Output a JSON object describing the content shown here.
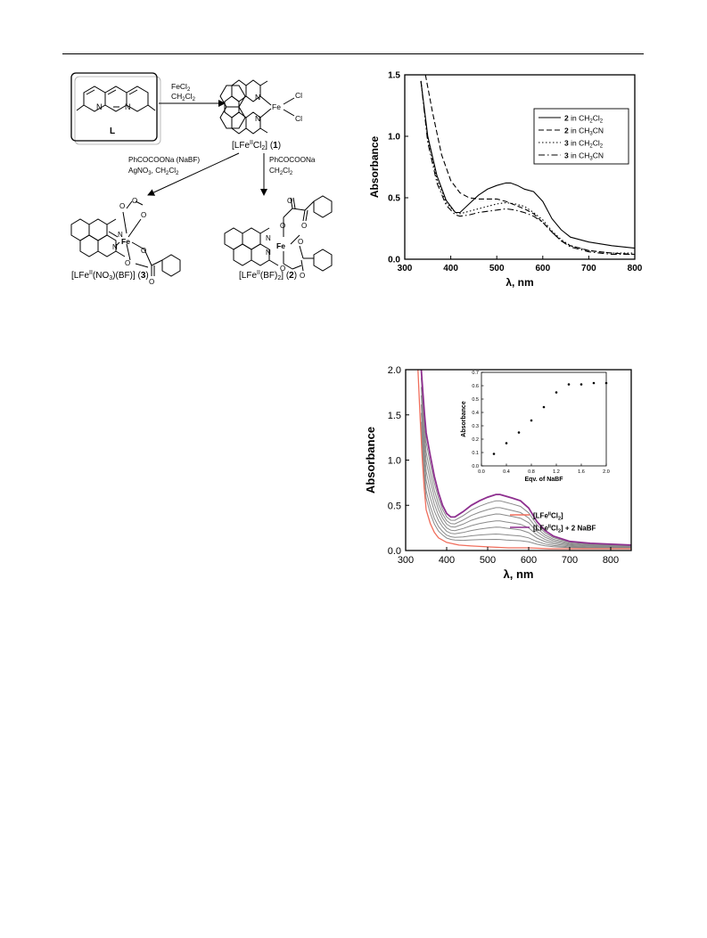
{
  "scheme": {
    "ligand_label": "L",
    "arrow1_line1": "FeCl",
    "arrow1_line1_sub": "2",
    "arrow1_line2": "CH",
    "arrow1_line2_parts": [
      "CH",
      "2",
      "Cl",
      "2"
    ],
    "fe_label": "Fe",
    "n_label": "N",
    "cl_label": "Cl",
    "compound1_parts": [
      "[LFe",
      "II",
      "Cl",
      "2",
      "] (",
      "1",
      ")"
    ],
    "left_reagent_line1": "PhCOCOONa (NaBF)",
    "left_reagent_line2_parts": [
      "AgNO",
      "3",
      ", CH",
      "2",
      "Cl",
      "2"
    ],
    "right_reagent_line1": "PhCOCOONa",
    "right_reagent_line2_parts": [
      "CH",
      "2",
      "Cl",
      "2"
    ],
    "compound3_parts": [
      "[LFe",
      "II",
      "(NO",
      "3",
      ")(BF)] (",
      "3",
      ")"
    ],
    "compound2_parts": [
      "[LFe",
      "II",
      "(BF)",
      "2",
      "] (",
      "2",
      ")"
    ],
    "o_label": "O"
  },
  "chart_data": [
    {
      "type": "line",
      "xlabel": "λ, nm",
      "ylabel": "Absorbance",
      "xlim": [
        300,
        800
      ],
      "ylim": [
        0.0,
        1.5
      ],
      "xticks": [
        "300",
        "400",
        "500",
        "600",
        "700",
        "800"
      ],
      "yticks": [
        "0.0",
        "0.5",
        "1.0",
        "1.5"
      ],
      "legend_position": "top-right",
      "series": [
        {
          "name": "2 in CH2Cl2",
          "label_parts": [
            "2",
            " in CH",
            "2",
            "Cl",
            "2"
          ],
          "style": "solid",
          "x": [
            335,
            350,
            370,
            390,
            410,
            420,
            440,
            460,
            480,
            500,
            520,
            530,
            545,
            560,
            580,
            600,
            620,
            640,
            660,
            700,
            750,
            800
          ],
          "y": [
            1.45,
            1.0,
            0.68,
            0.48,
            0.38,
            0.38,
            0.45,
            0.52,
            0.57,
            0.6,
            0.62,
            0.62,
            0.6,
            0.57,
            0.55,
            0.47,
            0.33,
            0.24,
            0.18,
            0.14,
            0.11,
            0.09
          ]
        },
        {
          "name": "2 in CH3CN",
          "label_parts": [
            "2",
            " in CH",
            "3",
            "CN"
          ],
          "style": "dash",
          "x": [
            345,
            360,
            380,
            400,
            420,
            440,
            460,
            480,
            500,
            520,
            540,
            560,
            580,
            600,
            620,
            640,
            660,
            700,
            750,
            800
          ],
          "y": [
            1.5,
            1.2,
            0.85,
            0.64,
            0.54,
            0.5,
            0.49,
            0.49,
            0.49,
            0.47,
            0.44,
            0.41,
            0.37,
            0.3,
            0.22,
            0.15,
            0.11,
            0.07,
            0.05,
            0.04
          ]
        },
        {
          "name": "3 in CH2Cl2",
          "label_parts": [
            "3",
            " in CH",
            "2",
            "Cl",
            "2"
          ],
          "style": "dot",
          "x": [
            335,
            350,
            370,
            390,
            410,
            420,
            440,
            460,
            480,
            500,
            520,
            540,
            560,
            580,
            600,
            620,
            640,
            660,
            700,
            750,
            800
          ],
          "y": [
            1.45,
            0.98,
            0.65,
            0.46,
            0.38,
            0.37,
            0.39,
            0.41,
            0.43,
            0.45,
            0.46,
            0.45,
            0.43,
            0.38,
            0.32,
            0.23,
            0.16,
            0.11,
            0.07,
            0.05,
            0.05
          ]
        },
        {
          "name": "3 in CH3CN",
          "label_parts": [
            "3",
            " in CH",
            "3",
            "CN"
          ],
          "style": "dashdot",
          "x": [
            335,
            350,
            370,
            390,
            410,
            420,
            440,
            460,
            480,
            500,
            520,
            540,
            560,
            580,
            600,
            620,
            640,
            660,
            700,
            750,
            800
          ],
          "y": [
            1.45,
            0.95,
            0.62,
            0.44,
            0.36,
            0.35,
            0.36,
            0.38,
            0.39,
            0.4,
            0.41,
            0.4,
            0.38,
            0.35,
            0.3,
            0.22,
            0.15,
            0.1,
            0.06,
            0.04,
            0.04
          ]
        }
      ]
    },
    {
      "type": "line",
      "xlabel": "λ, nm",
      "ylabel": "Absorbance",
      "xlim": [
        300,
        850
      ],
      "ylim": [
        0.0,
        2.0
      ],
      "xticks": [
        "300",
        "400",
        "500",
        "600",
        "700",
        "800"
      ],
      "yticks": [
        "0.0",
        "0.5",
        "1.0",
        "1.5",
        "2.0"
      ],
      "legend_position": "bottom-right",
      "legend": [
        {
          "name": "[LFeIICl2]",
          "label_parts": [
            "[LFe",
            "II",
            "Cl",
            "2",
            "]"
          ],
          "color": "#f06e5c"
        },
        {
          "name": "[LFeIICl2] + 2 NaBF",
          "label_parts": [
            "[LFe",
            "II",
            "Cl",
            "2",
            "] + 2 NaBF"
          ],
          "color": "#8e2f8f"
        }
      ],
      "titration_scale_factors": [
        0.15,
        0.25,
        0.38,
        0.5,
        0.63,
        0.75,
        0.88
      ],
      "base_series": {
        "name": "[LFeIICl2]",
        "x": [
          330,
          335,
          340,
          345,
          350,
          360,
          370,
          380,
          400,
          430,
          460,
          500,
          550,
          600,
          650,
          700,
          750,
          800,
          850
        ],
        "y": [
          2.0,
          1.5,
          1.05,
          0.7,
          0.45,
          0.3,
          0.2,
          0.14,
          0.09,
          0.06,
          0.05,
          0.04,
          0.03,
          0.03,
          0.02,
          0.02,
          0.02,
          0.02,
          0.02
        ]
      },
      "final_series": {
        "name": "[LFeIICl2] + 2 NaBF",
        "x": [
          338,
          342,
          346,
          350,
          360,
          370,
          380,
          390,
          400,
          410,
          420,
          440,
          460,
          480,
          500,
          520,
          530,
          545,
          560,
          580,
          600,
          620,
          640,
          660,
          700,
          750,
          800,
          850
        ],
        "y": [
          2.0,
          1.75,
          1.5,
          1.3,
          1.05,
          0.82,
          0.64,
          0.5,
          0.41,
          0.37,
          0.37,
          0.43,
          0.5,
          0.55,
          0.59,
          0.62,
          0.62,
          0.6,
          0.58,
          0.55,
          0.47,
          0.32,
          0.22,
          0.16,
          0.1,
          0.08,
          0.07,
          0.06
        ]
      },
      "inset": {
        "type": "scatter",
        "xlabel": "Eqv. of NaBF",
        "ylabel": "Absorbance",
        "xlim": [
          0.0,
          2.0
        ],
        "ylim": [
          0.0,
          0.7
        ],
        "xticks": [
          "0.0",
          "0.4",
          "0.8",
          "1.2",
          "1.6",
          "2.0"
        ],
        "yticks": [
          "0.0",
          "0.1",
          "0.2",
          "0.3",
          "0.4",
          "0.5",
          "0.6",
          "0.7"
        ],
        "x": [
          0.2,
          0.4,
          0.6,
          0.8,
          1.0,
          1.2,
          1.4,
          1.6,
          1.8,
          2.0
        ],
        "y": [
          0.09,
          0.17,
          0.25,
          0.34,
          0.44,
          0.55,
          0.61,
          0.61,
          0.62,
          0.62
        ]
      }
    }
  ]
}
